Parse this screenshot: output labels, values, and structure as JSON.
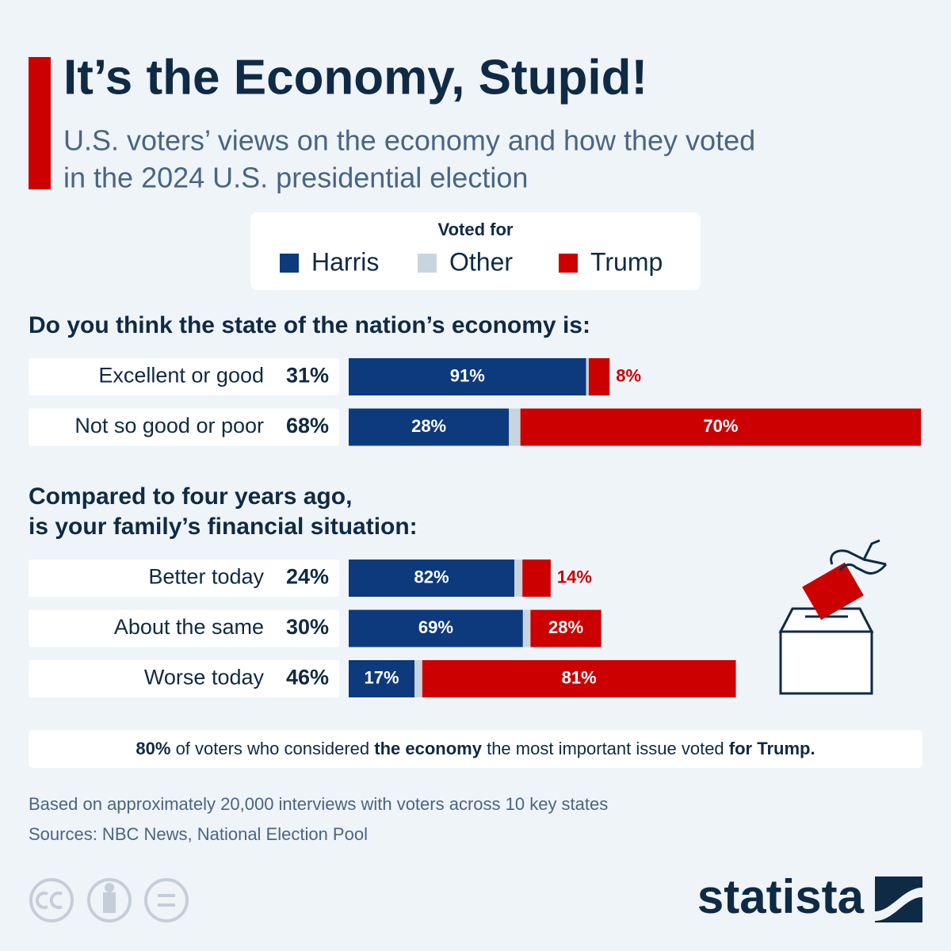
{
  "title": "It’s the Economy, Stupid!",
  "subtitle": [
    "U.S. voters’ views on the economy and how they voted",
    "in the 2024 U.S. presidential election"
  ],
  "legend_title": "Voted for",
  "chart_data": [
    {
      "type": "stacked_bar",
      "title": [
        "Do you think the state of the nation’s economy is:"
      ],
      "categories": [
        "Excellent or good",
        "Not so good or poor"
      ],
      "shares": [
        31,
        68
      ],
      "share_labels": [
        "31%",
        "68%"
      ],
      "series": [
        {
          "name": "Harris",
          "color": "#0d3a7d",
          "values": [
            91,
            28
          ],
          "value_labels": [
            "91%",
            "28%"
          ]
        },
        {
          "name": "Other",
          "color": "#c9d5de",
          "values": [
            1,
            2
          ]
        },
        {
          "name": "Trump",
          "color": "#cc0000",
          "values": [
            8,
            70
          ],
          "value_labels": [
            "8%",
            "70%"
          ]
        }
      ]
    },
    {
      "type": "stacked_bar",
      "title": [
        "Compared to four years ago,",
        "is your family’s financial situation:"
      ],
      "categories": [
        "Better today",
        "About the same",
        "Worse today"
      ],
      "shares": [
        24,
        30,
        46
      ],
      "share_labels": [
        "24%",
        "30%",
        "46%"
      ],
      "series": [
        {
          "color": "#0d3a7d",
          "values": [
            82,
            69,
            17
          ],
          "value_labels": [
            "82%",
            "69%",
            "17%"
          ]
        },
        {
          "color": "#c9d5de",
          "values": [
            4,
            3,
            2
          ]
        },
        {
          "color": "#cc0000",
          "values": [
            14,
            28,
            81
          ],
          "value_labels": [
            "14%",
            "28%",
            "81%"
          ]
        }
      ]
    }
  ],
  "note": [
    {
      "text": "80%",
      "bold": true
    },
    {
      "text": " of voters who considered ",
      "bold": false
    },
    {
      "text": "the economy",
      "bold": true
    },
    {
      "text": " the most important issue voted ",
      "bold": false
    },
    {
      "text": "for Trump.",
      "bold": true
    }
  ],
  "footnotes": [
    "Based on approximately 20,000 interviews with voters across 10 key states",
    "Sources: NBC News, National Election Pool"
  ],
  "brand": "statista"
}
